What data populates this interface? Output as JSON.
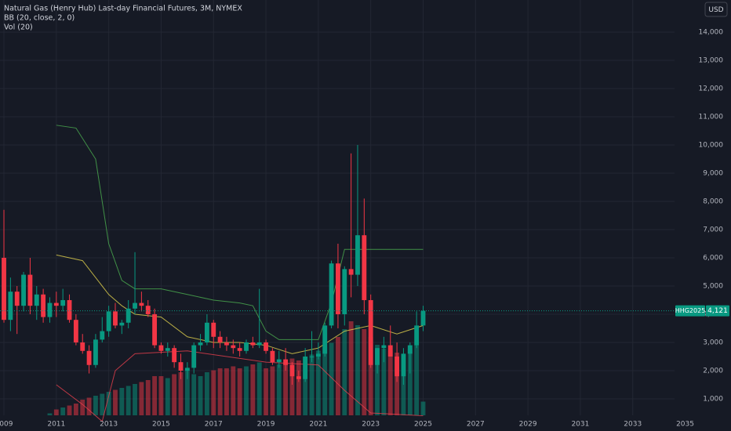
{
  "chart_data": {
    "type": "candlestick",
    "title": "Natural Gas (Henry Hub) Last-day Financial Futures, 3M, NYMEX",
    "indicators": [
      "BB (20, close, 2, 0)",
      "Vol (20)"
    ],
    "currency": "USD",
    "symbol": "HHG2025",
    "last_value_label": "4,121",
    "up_color": "#089981",
    "down_color": "#f23645",
    "grid": true,
    "xlim": [
      2008.85,
      2036.75
    ],
    "xticks": [
      2009,
      2011,
      2013,
      2015,
      2017,
      2019,
      2021,
      2023,
      2025,
      2027,
      2029,
      2031,
      2033,
      2035
    ],
    "ylim": [
      -140,
      15140
    ],
    "yticks": [
      {
        "value": 1000,
        "label": "1,000"
      },
      {
        "value": 2000,
        "label": "2,000"
      },
      {
        "value": 3000,
        "label": "3,000"
      },
      {
        "value": 4000,
        "label": "4,000"
      },
      {
        "value": 5000,
        "label": "5,000"
      },
      {
        "value": 6000,
        "label": "6,000"
      },
      {
        "value": 7000,
        "label": "7,000"
      },
      {
        "value": 8000,
        "label": "8,000"
      },
      {
        "value": 9000,
        "label": "9,000"
      },
      {
        "value": 10000,
        "label": "10,000"
      },
      {
        "value": 11000,
        "label": "11,000"
      },
      {
        "value": 12000,
        "label": "12,000"
      },
      {
        "value": 13000,
        "label": "13,000"
      },
      {
        "value": 14000,
        "label": "14,000"
      }
    ],
    "x": [
      2009,
      2009.25,
      2009.5,
      2009.75,
      2010,
      2010.25,
      2010.5,
      2010.75,
      2011,
      2011.25,
      2011.5,
      2011.75,
      2012,
      2012.25,
      2012.5,
      2012.75,
      2013,
      2013.25,
      2013.5,
      2013.75,
      2014,
      2014.25,
      2014.5,
      2014.75,
      2015,
      2015.25,
      2015.5,
      2015.75,
      2016,
      2016.25,
      2016.5,
      2016.75,
      2017,
      2017.25,
      2017.5,
      2017.75,
      2018,
      2018.25,
      2018.5,
      2018.75,
      2019,
      2019.25,
      2019.5,
      2019.75,
      2020,
      2020.25,
      2020.5,
      2020.75,
      2021,
      2021.25,
      2021.5,
      2021.75,
      2022,
      2022.25,
      2022.5,
      2022.75,
      2023,
      2023.25,
      2023.5,
      2023.75,
      2024,
      2024.25,
      2024.5,
      2024.75,
      2025
    ],
    "open": [
      6000,
      3800,
      4800,
      4300,
      5400,
      4300,
      4700,
      3900,
      4400,
      4300,
      4500,
      3800,
      3000,
      2700,
      2200,
      3100,
      3400,
      4100,
      3600,
      3700,
      4200,
      4400,
      4300,
      4000,
      2900,
      2700,
      2800,
      2300,
      2000,
      2100,
      2900,
      3000,
      3700,
      3200,
      3000,
      2900,
      2800,
      2700,
      3000,
      2900,
      3000,
      2700,
      2300,
      2400,
      2200,
      1800,
      1700,
      2500,
      2500,
      2600,
      3600,
      5800,
      4000,
      5600,
      5400,
      6800,
      4500,
      2200,
      2800,
      2900,
      2500,
      1800,
      2600,
      2900,
      3600
    ],
    "high": [
      7700,
      5300,
      5000,
      5500,
      6000,
      5000,
      4900,
      4600,
      4800,
      4900,
      4700,
      4000,
      3300,
      2900,
      3300,
      3900,
      4300,
      4400,
      3800,
      4500,
      6200,
      4800,
      4500,
      4200,
      3000,
      3000,
      2900,
      2600,
      2300,
      3000,
      3300,
      4000,
      3800,
      3400,
      3200,
      3100,
      3000,
      3100,
      3200,
      4900,
      3100,
      2800,
      2700,
      2800,
      2300,
      2000,
      2800,
      3400,
      3000,
      3700,
      5900,
      6500,
      5700,
      9700,
      10000,
      8100,
      4700,
      2800,
      3200,
      3600,
      3000,
      2800,
      3000,
      4100,
      4300
    ],
    "low": [
      3700,
      3400,
      3300,
      4100,
      4000,
      3800,
      3700,
      3700,
      3900,
      4100,
      3700,
      2900,
      2600,
      1900,
      2100,
      3000,
      3200,
      3500,
      3300,
      3500,
      4000,
      4100,
      3900,
      2800,
      2600,
      2500,
      2100,
      1700,
      1700,
      1900,
      2700,
      2900,
      2800,
      2800,
      2700,
      2600,
      2500,
      2600,
      2800,
      2800,
      2600,
      2200,
      2100,
      2000,
      1500,
      1600,
      1600,
      2300,
      2400,
      2500,
      3500,
      3500,
      3600,
      4600,
      5000,
      4000,
      2100,
      1900,
      2300,
      2500,
      1600,
      1500,
      1900,
      2800,
      3400
    ],
    "close": [
      3800,
      4800,
      4300,
      5400,
      4300,
      4700,
      3900,
      4400,
      4300,
      4500,
      3800,
      3000,
      2700,
      2200,
      3100,
      3400,
      4100,
      3600,
      3700,
      4200,
      4400,
      4300,
      4000,
      2900,
      2700,
      2800,
      2300,
      2000,
      2100,
      2900,
      3000,
      3700,
      3200,
      3000,
      2900,
      2800,
      2700,
      3000,
      2900,
      3000,
      2700,
      2300,
      2400,
      2200,
      1800,
      1700,
      2500,
      2500,
      2600,
      3600,
      5800,
      4000,
      5600,
      5400,
      6800,
      4500,
      2200,
      2800,
      2900,
      2500,
      1800,
      2600,
      2900,
      3600,
      4121
    ],
    "volume": [
      0,
      0,
      0,
      0,
      0,
      0,
      0,
      1,
      3,
      4,
      5,
      6,
      8,
      9,
      10,
      11,
      12,
      13,
      14,
      15,
      16,
      17,
      18,
      20,
      20,
      19,
      21,
      22,
      23,
      21,
      20,
      22,
      23,
      24,
      24,
      25,
      24,
      25,
      26,
      27,
      24,
      25,
      26,
      27,
      29,
      28,
      30,
      31,
      33,
      35,
      37,
      40,
      44,
      48,
      46,
      44,
      40,
      36,
      34,
      33,
      32,
      31,
      34,
      36,
      7
    ],
    "volume_lim": [
      0,
      100
    ],
    "bands": [
      {
        "name": "upper",
        "color": "#4caf50",
        "x": [
          2011,
          2011.75,
          2012.5,
          2013,
          2013.5,
          2014,
          2015,
          2016,
          2017,
          2018,
          2018.5,
          2019,
          2019.5,
          2020,
          2021,
          2021.5,
          2022,
          2025
        ],
        "values": [
          10700,
          10600,
          9500,
          6500,
          5200,
          4900,
          4900,
          4700,
          4500,
          4400,
          4300,
          3400,
          3100,
          3100,
          3100,
          4400,
          6300,
          6300
        ]
      },
      {
        "name": "basis",
        "color": "#e3d34d",
        "x": [
          2011,
          2012,
          2013,
          2013.5,
          2014,
          2015,
          2016,
          2017,
          2018,
          2019,
          2020,
          2021,
          2022,
          2023,
          2024,
          2025
        ],
        "values": [
          6100,
          5900,
          4700,
          4300,
          4000,
          3900,
          3200,
          3000,
          3000,
          2900,
          2600,
          2800,
          3400,
          3600,
          3300,
          3600
        ]
      },
      {
        "name": "lower",
        "color": "#e8404d",
        "x": [
          2011,
          2012,
          2012.75,
          2013.25,
          2014,
          2016,
          2019,
          2021,
          2022,
          2023,
          2025
        ],
        "values": [
          1500,
          800,
          200,
          2000,
          2600,
          2700,
          2300,
          2200,
          1300,
          500,
          400
        ]
      }
    ]
  }
}
